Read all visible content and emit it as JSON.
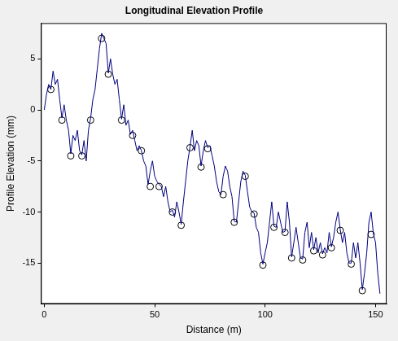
{
  "chart_data": {
    "type": "line",
    "title": "Longitudinal Elevation Profile",
    "x_label": "Distance (m)",
    "y_label": "Profile Elevation (mm)",
    "xlim": [
      -1.5,
      155
    ],
    "xticks": [
      0,
      50,
      100,
      150
    ],
    "ylim": [
      -19,
      8.5
    ],
    "yticks": [
      -15,
      -10,
      -5,
      0,
      5
    ],
    "grid": false,
    "series": [
      {
        "color": "#000080",
        "marker": "none",
        "line_style": "solid",
        "x": [
          0,
          1,
          2,
          3,
          4,
          5,
          6,
          7,
          8,
          9,
          10,
          11,
          12,
          13,
          14,
          15,
          16,
          17,
          18,
          19,
          20,
          21,
          22,
          23,
          24,
          25,
          26,
          27,
          28,
          29,
          30,
          31,
          32,
          33,
          34,
          35,
          36,
          37,
          38,
          39,
          40,
          41,
          42,
          43,
          44,
          45,
          46,
          47,
          48,
          49,
          50,
          51,
          52,
          53,
          54,
          55,
          56,
          57,
          58,
          59,
          60,
          61,
          62,
          63,
          64,
          65,
          66,
          67,
          68,
          69,
          70,
          71,
          72,
          73,
          74,
          75,
          76,
          77,
          78,
          79,
          80,
          81,
          82,
          83,
          84,
          85,
          86,
          87,
          88,
          89,
          90,
          91,
          92,
          93,
          94,
          95,
          96,
          97,
          98,
          99,
          100,
          101,
          102,
          103,
          104,
          105,
          106,
          107,
          108,
          109,
          110,
          111,
          112,
          113,
          114,
          115,
          116,
          117,
          118,
          119,
          120,
          121,
          122,
          123,
          124,
          125,
          126,
          127,
          128,
          129,
          130,
          131,
          132,
          133,
          134,
          135,
          136,
          137,
          138,
          139,
          140,
          141,
          142,
          143,
          144,
          145,
          146,
          147,
          148,
          149,
          150,
          151,
          152
        ],
        "values": [
          0,
          1.5,
          2.5,
          2,
          3.8,
          2.5,
          3,
          1,
          -0.8,
          0.5,
          -1,
          -2,
          -4.3,
          -2.5,
          -3,
          -2,
          -4,
          -4.4,
          -3,
          -5,
          -2,
          -0.8,
          1,
          2,
          4,
          6,
          7.5,
          7,
          6.5,
          3.6,
          5,
          3.5,
          2.5,
          3,
          1,
          -0.9,
          0.5,
          -1.5,
          -1,
          -2.4,
          -2,
          -3,
          -4,
          -3.5,
          -4,
          -5,
          -5.5,
          -7.3,
          -6,
          -5,
          -6.5,
          -7,
          -7.3,
          -7.5,
          -8.5,
          -7.5,
          -9,
          -10,
          -9.8,
          -10.5,
          -9,
          -10,
          -11.2,
          -9,
          -7,
          -5,
          -3.6,
          -2,
          -4,
          -3,
          -3.5,
          -5.5,
          -4,
          -3,
          -3.7,
          -3.5,
          -4.5,
          -5.5,
          -7,
          -8,
          -8.3,
          -6.5,
          -5.5,
          -6,
          -7.5,
          -8.5,
          -10.9,
          -11,
          -9,
          -7,
          -6,
          -6.4,
          -8,
          -9.5,
          -10,
          -10.1,
          -11.5,
          -12,
          -14,
          -15.1,
          -14,
          -13,
          -11,
          -9,
          -11.4,
          -11.5,
          -10,
          -11,
          -12,
          -11.9,
          -9,
          -11,
          -14.4,
          -13,
          -11.5,
          -13,
          -14.5,
          -14.6,
          -12,
          -11,
          -13.5,
          -12,
          -13.7,
          -12.5,
          -14,
          -13,
          -14.1,
          -13.5,
          -14,
          -12,
          -13.4,
          -12.5,
          -11,
          -10,
          -11.7,
          -13,
          -12,
          -14,
          -15,
          -15,
          -13,
          -14.5,
          -13,
          -15,
          -17.6,
          -16,
          -14,
          -11,
          -10,
          -12.1,
          -13,
          -16,
          -18
        ]
      },
      {
        "type": "scatter",
        "color": "#000000",
        "marker": "circle",
        "x": [
          3,
          8,
          12,
          17,
          21,
          26,
          29,
          35,
          40,
          44,
          48,
          52,
          58,
          62,
          66,
          71,
          74,
          81,
          86,
          91,
          95,
          99,
          104,
          109,
          112,
          117,
          122,
          126,
          130,
          134,
          139,
          144,
          148
        ],
        "values": [
          2,
          -1,
          -4.5,
          -4.5,
          -1,
          7,
          3.5,
          -1,
          -2.5,
          -4,
          -7.5,
          -7.5,
          -10,
          -11.3,
          -3.7,
          -5.6,
          -3.8,
          -8.3,
          -11,
          -6.5,
          -10.2,
          -15.2,
          -11.5,
          -12,
          -14.5,
          -14.7,
          -13.8,
          -14.2,
          -13.5,
          -11.8,
          -15.1,
          -17.7,
          -12.2
        ]
      }
    ]
  }
}
